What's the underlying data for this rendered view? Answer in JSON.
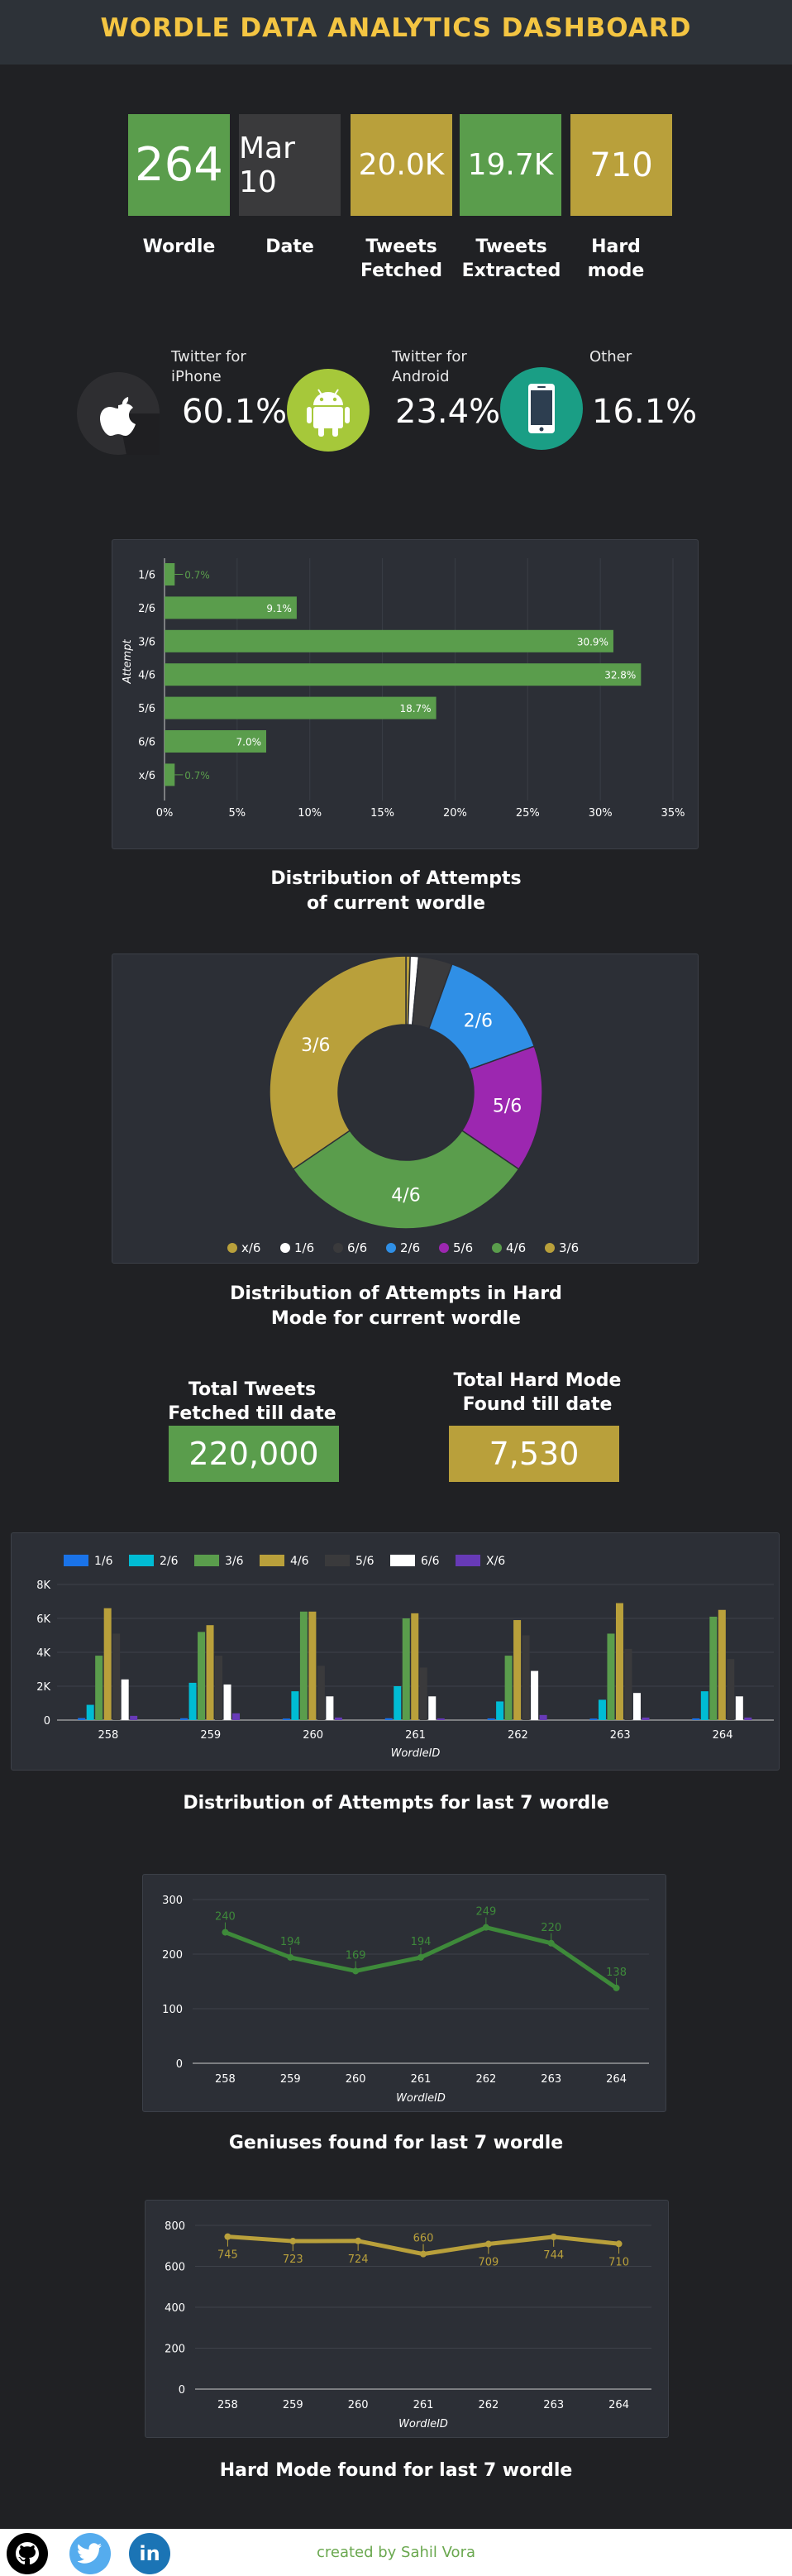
{
  "header": {
    "title": "WORDLE DATA ANALYTICS DASHBOARD"
  },
  "tiles": [
    {
      "value": "264",
      "label": "Wordle",
      "color": "#5a9d4c"
    },
    {
      "value": "Mar 10",
      "label": "Date",
      "color": "#3a3a3c"
    },
    {
      "value": "20.0K",
      "label": "Tweets Fetched",
      "color": "#b9a03b"
    },
    {
      "value": "19.7K",
      "label": "Tweets Extracted",
      "color": "#5a9d4c"
    },
    {
      "value": "710",
      "label": "Hard mode",
      "color": "#b9a03b"
    }
  ],
  "platforms": [
    {
      "icon": "apple-icon",
      "name": "Twitter for iPhone",
      "pct": "60.1%"
    },
    {
      "icon": "android-icon",
      "name": "Twitter for Android",
      "pct": "23.4%"
    },
    {
      "icon": "phone-icon",
      "name": "Other",
      "pct": "16.1%"
    }
  ],
  "attempts_chart": {
    "caption": "Distribution of Attempts of current wordle",
    "ylabel": "Attempt",
    "xticks": [
      "0%",
      "5%",
      "10%",
      "15%",
      "20%",
      "25%",
      "30%",
      "35%"
    ]
  },
  "hardmode_chart": {
    "caption": "Distribution of Attempts in Hard Mode for current wordle"
  },
  "totals": {
    "tweets_title": "Total Tweets Fetched till date",
    "tweets_value": "220,000",
    "hard_title": "Total Hard Mode Found till date",
    "hard_value": "7,530"
  },
  "last7_chart": {
    "caption": "Distribution of Attempts for last 7 wordle",
    "xlabel": "WordleID"
  },
  "genius_chart": {
    "caption": "Geniuses found for last 7 wordle",
    "xlabel": "WordleID"
  },
  "hardlast_chart": {
    "caption": "Hard Mode found for last 7 wordle",
    "xlabel": "WordleID"
  },
  "footer": {
    "credit": "created by Sahil Vora"
  },
  "colors": {
    "green": "#5a9d4c",
    "gold": "#b9a03b",
    "blue": "#2f8fe6",
    "purple": "#9c27b0",
    "dark": "#3a3a3c",
    "white": "#ffffff"
  },
  "chart_data": [
    {
      "type": "bar",
      "orientation": "horizontal",
      "categories": [
        "1/6",
        "2/6",
        "3/6",
        "4/6",
        "5/6",
        "6/6",
        "x/6"
      ],
      "values": [
        0.7,
        9.1,
        30.9,
        32.8,
        18.7,
        7.0,
        0.7
      ],
      "labels": [
        "0.7%",
        "9.1%",
        "30.9%",
        "32.8%",
        "18.7%",
        "7.0%",
        "0.7%"
      ],
      "ylabel": "Attempt",
      "xlim": [
        0,
        35
      ],
      "grid": true
    },
    {
      "type": "pie",
      "donut": true,
      "categories": [
        "x/6",
        "1/6",
        "6/6",
        "2/6",
        "5/6",
        "4/6",
        "3/6"
      ],
      "values": [
        0.5,
        1.0,
        4.0,
        14.0,
        15.0,
        31.0,
        34.5
      ],
      "colors": [
        "#b9a03b",
        "#ffffff",
        "#3a3a3c",
        "#2f8fe6",
        "#9c27b0",
        "#5a9d4c",
        "#b9a03b"
      ],
      "slice_labels": [
        "",
        "",
        "",
        "2/6",
        "5/6",
        "4/6",
        "3/6"
      ],
      "legend": "bottom"
    },
    {
      "type": "bar",
      "categories": [
        "258",
        "259",
        "260",
        "261",
        "262",
        "263",
        "264"
      ],
      "xlabel": "WordleID",
      "ylim": [
        0,
        8000
      ],
      "yticks": [
        "0",
        "2K",
        "4K",
        "6K",
        "8K"
      ],
      "legend": "top-left",
      "series": [
        {
          "name": "1/6",
          "color": "#1a73e8",
          "values": [
            120,
            110,
            90,
            110,
            100,
            90,
            100
          ]
        },
        {
          "name": "2/6",
          "color": "#00bcd4",
          "values": [
            900,
            2200,
            1700,
            2000,
            1100,
            1200,
            1700
          ]
        },
        {
          "name": "3/6",
          "color": "#5a9d4c",
          "values": [
            3800,
            5200,
            6400,
            6000,
            3800,
            5100,
            6100
          ]
        },
        {
          "name": "4/6",
          "color": "#b9a03b",
          "values": [
            6600,
            5600,
            6400,
            6300,
            5900,
            6900,
            6500
          ]
        },
        {
          "name": "5/6",
          "color": "#3a3a3c",
          "values": [
            5100,
            3800,
            3200,
            3100,
            5000,
            4200,
            3600
          ]
        },
        {
          "name": "6/6",
          "color": "#ffffff",
          "values": [
            2400,
            2100,
            1400,
            1400,
            2900,
            1600,
            1400
          ]
        },
        {
          "name": "X/6",
          "color": "#673ab7",
          "values": [
            250,
            400,
            150,
            100,
            300,
            150,
            150
          ]
        }
      ]
    },
    {
      "type": "line",
      "x": [
        "258",
        "259",
        "260",
        "261",
        "262",
        "263",
        "264"
      ],
      "values": [
        240,
        194,
        169,
        194,
        249,
        220,
        138
      ],
      "labels": [
        "240",
        "194",
        "169",
        "194",
        "249",
        "220",
        "138"
      ],
      "xlabel": "WordleID",
      "ylim": [
        0,
        300
      ],
      "yticks": [
        "0",
        "100",
        "200",
        "300"
      ],
      "color": "#3e8a3a"
    },
    {
      "type": "line",
      "x": [
        "258",
        "259",
        "260",
        "261",
        "262",
        "263",
        "264"
      ],
      "values": [
        745,
        723,
        724,
        660,
        709,
        744,
        710
      ],
      "labels": [
        "745",
        "723",
        "724",
        "660",
        "709",
        "744",
        "710"
      ],
      "xlabel": "WordleID",
      "ylim": [
        0,
        800
      ],
      "yticks": [
        "0",
        "200",
        "400",
        "600",
        "800"
      ],
      "color": "#b9a03b"
    }
  ]
}
